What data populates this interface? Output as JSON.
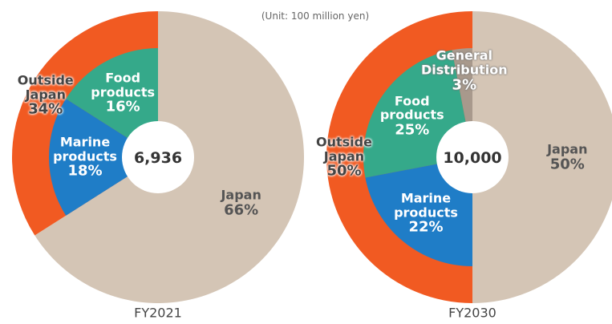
{
  "subtitle": "(Unit: 100 million yen)",
  "chart_data": [
    {
      "type": "pie",
      "title": "FY2021",
      "total": "6,936",
      "categories": [
        "Japan",
        "Outside Japan"
      ],
      "values": [
        66,
        34
      ],
      "value_labels": [
        "66%",
        "34%"
      ],
      "colors": [
        "#d4c5b5",
        "#f15a22"
      ],
      "breakdown": {
        "categories": [
          "Marine products",
          "Food products"
        ],
        "values": [
          18,
          16
        ],
        "value_labels": [
          "18%",
          "16%"
        ],
        "colors": [
          "#1f7dc7",
          "#35a98a"
        ]
      }
    },
    {
      "type": "pie",
      "title": "FY2030",
      "total": "10,000",
      "categories": [
        "Japan",
        "Outside Japan"
      ],
      "values": [
        50,
        50
      ],
      "value_labels": [
        "50%",
        "50%"
      ],
      "colors": [
        "#d4c5b5",
        "#f15a22"
      ],
      "breakdown": {
        "categories": [
          "Marine products",
          "Food products",
          "General Distribution"
        ],
        "values": [
          22,
          25,
          3
        ],
        "value_labels": [
          "22%",
          "25%",
          "3%"
        ],
        "colors": [
          "#1f7dc7",
          "#35a98a",
          "#a8998c"
        ]
      }
    }
  ]
}
